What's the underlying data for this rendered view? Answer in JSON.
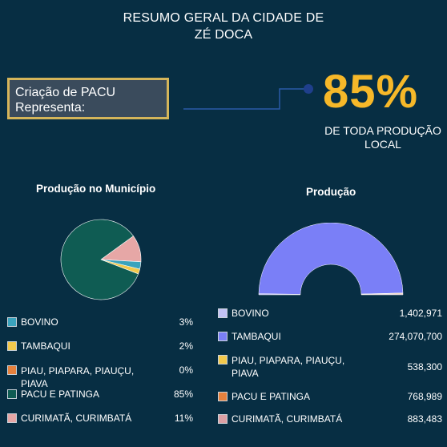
{
  "header": {
    "title_line1": "RESUMO GERAL DA CIDADE DE",
    "title_line2": "ZÉ DOCA"
  },
  "callout": {
    "line1": "Criação de PACU",
    "line2": "Representa:"
  },
  "highlight": {
    "percent": "85%",
    "sub_line1": "DE TODA PRODUÇÃO",
    "sub_line2": "LOCAL"
  },
  "charts_text": {
    "pie_title": "Produção no Município",
    "gauge_title": "Produção"
  },
  "chart_data": [
    {
      "type": "pie",
      "title": "Produção no Município",
      "series": [
        {
          "name": "BOVINO",
          "value_label": "3%",
          "value": 3,
          "color": "#3aa3bd"
        },
        {
          "name": "TAMBAQUI",
          "value_label": "2%",
          "value": 2,
          "color": "#f2c94c"
        },
        {
          "name": "PIAU, PIAPARA, PIAUÇU, PIAVA",
          "value_label": "0%",
          "value": 0,
          "color": "#e6813d"
        },
        {
          "name": "PACU E PATINGA",
          "value_label": "85%",
          "value": 85,
          "color": "#0f5c53"
        },
        {
          "name": "CURIMATÃ, CURIMBATÁ",
          "value_label": "11%",
          "value": 11,
          "color": "#e6a7a6"
        }
      ]
    },
    {
      "type": "pie",
      "title": "Produção",
      "series": [
        {
          "name": "BOVINO",
          "value_label": "1,402,971",
          "value": 1402971,
          "color": "#c2c2f5"
        },
        {
          "name": "TAMBAQUI",
          "value_label": "274,070,700",
          "value": 274070700,
          "color": "#7a7ff7"
        },
        {
          "name": "PIAU, PIAPARA, PIAUÇU, PIAVA",
          "value_label": "538,300",
          "value": 538300,
          "color": "#f2c94c"
        },
        {
          "name": "PACU E PATINGA",
          "value_label": "768,989",
          "value": 768989,
          "color": "#e6813d"
        },
        {
          "name": "CURIMATÃ, CURIMBATÁ",
          "value_label": "883,483",
          "value": 883483,
          "color": "#dba0a4"
        }
      ]
    }
  ]
}
